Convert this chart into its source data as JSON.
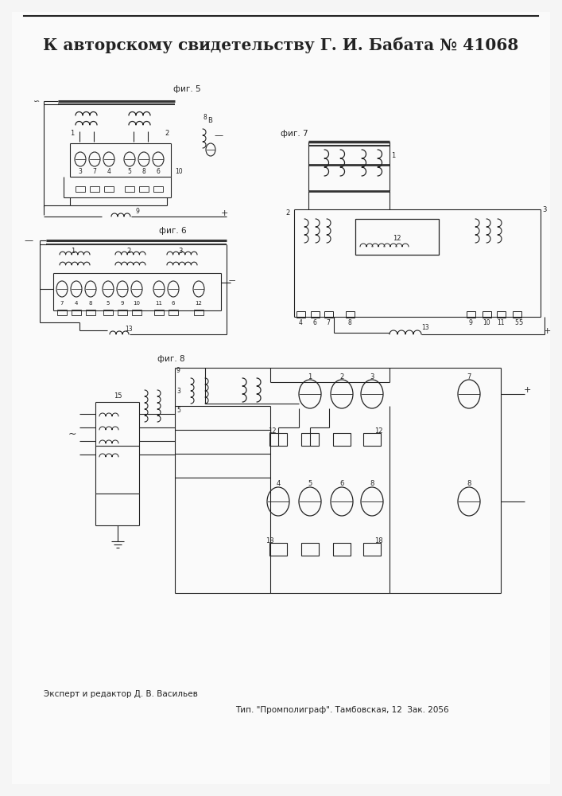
{
  "title_line": "К авторскому свидетельству Г. И. Бабата № 41068",
  "footer_left": "Эксперт и редактор Д. В. Васильев",
  "footer_right": "Тип. \"Промполиграф\". Тамбовская, 12  Зак. 2056",
  "fig5_label": "фиг. 5",
  "fig6_label": "фиг. 6",
  "fig7_label": "фиг. 7",
  "fig8_label": "фиг. 8",
  "bg_color": "#f0f0f0",
  "line_color": "#222222",
  "title_fontsize": 15,
  "footer_fontsize": 7.5
}
